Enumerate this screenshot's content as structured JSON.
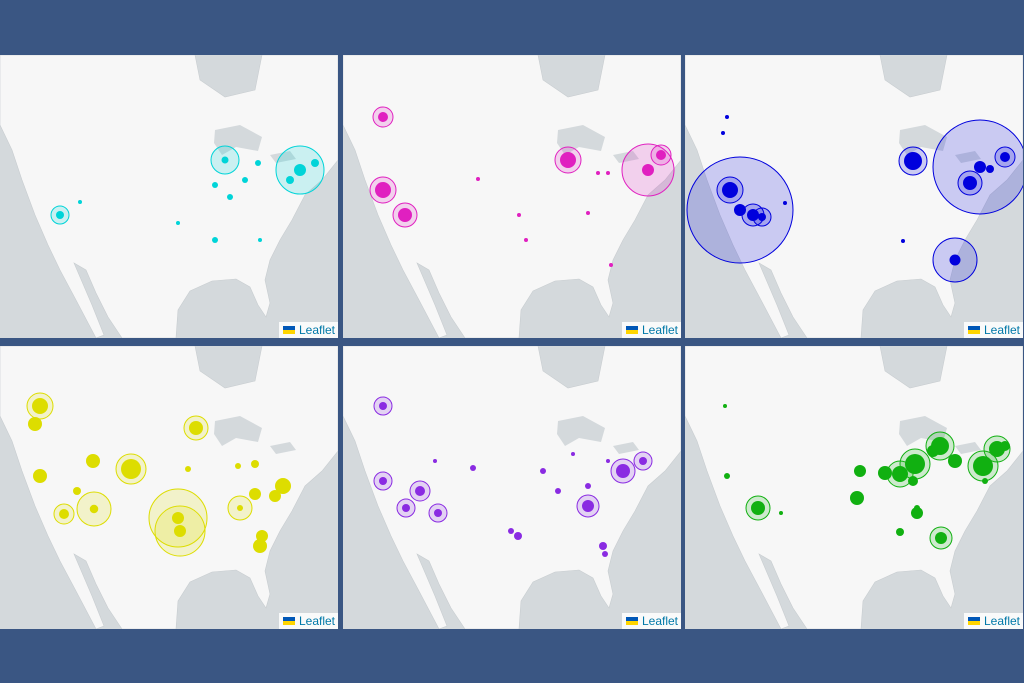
{
  "maps": [
    {
      "attribution": "Leaflet"
    },
    {
      "attribution": "Leaflet"
    },
    {
      "attribution": "Leaflet"
    },
    {
      "attribution": "Leaflet"
    },
    {
      "attribution": "Leaflet"
    },
    {
      "attribution": "Leaflet"
    }
  ]
}
